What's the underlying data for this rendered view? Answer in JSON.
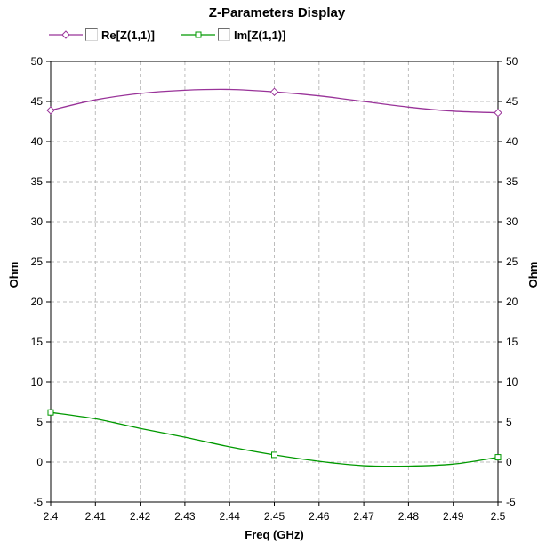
{
  "title": "Z-Parameters Display",
  "legend": [
    {
      "label": "Re[Z(1,1)]",
      "color": "#993399",
      "marker": "diamond",
      "checkbox_checked": false
    },
    {
      "label": "Im[Z(1,1)]",
      "color": "#009900",
      "marker": "square",
      "checkbox_checked": false
    }
  ],
  "axes": {
    "x_label": "Freq (GHz)",
    "y_left_label": "Ohm",
    "y_right_label": "Ohm",
    "x_ticks": [
      "2.4",
      "2.41",
      "2.42",
      "2.43",
      "2.44",
      "2.45",
      "2.46",
      "2.47",
      "2.48",
      "2.49",
      "2.5"
    ],
    "y_ticks": [
      "50",
      "45",
      "40",
      "35",
      "30",
      "25",
      "20",
      "15",
      "10",
      "5",
      "0",
      "-5"
    ]
  },
  "colors": {
    "background": "#ffffff",
    "axis": "#000000",
    "grid": "#bdbdbd",
    "re_series": "#993399",
    "im_series": "#009900",
    "text": "#000000"
  },
  "chart_data": {
    "type": "line",
    "title": "Z-Parameters Display",
    "xlabel": "Freq (GHz)",
    "ylabel": "Ohm",
    "ylabel_right": "Ohm",
    "xlim": [
      2.4,
      2.5
    ],
    "ylim": [
      -5,
      50
    ],
    "grid": true,
    "grid_style": "dashed",
    "legend_position": "top-left",
    "x": [
      2.4,
      2.41,
      2.42,
      2.43,
      2.44,
      2.45,
      2.46,
      2.47,
      2.48,
      2.49,
      2.5
    ],
    "series": [
      {
        "name": "Re[Z(1,1)]",
        "color": "#993399",
        "marker": "diamond",
        "marker_x": [
          2.4,
          2.45,
          2.5
        ],
        "values": [
          43.9,
          45.2,
          46.0,
          46.4,
          46.5,
          46.2,
          45.7,
          45.0,
          44.3,
          43.8,
          43.6
        ]
      },
      {
        "name": "Im[Z(1,1)]",
        "color": "#009900",
        "marker": "square",
        "marker_x": [
          2.4,
          2.45,
          2.5
        ],
        "values": [
          6.2,
          5.4,
          4.2,
          3.1,
          1.9,
          0.9,
          0.1,
          -0.45,
          -0.5,
          -0.25,
          0.6
        ]
      }
    ]
  }
}
